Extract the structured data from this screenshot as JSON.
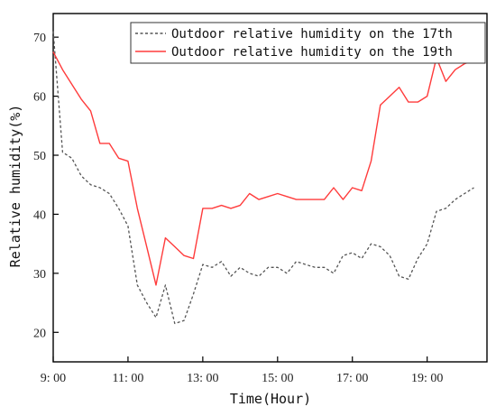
{
  "chart_data": {
    "type": "line",
    "xlabel": "Time(Hour)",
    "ylabel": "Relative humidity(%)",
    "xlim": [
      9.0,
      20.6
    ],
    "ylim": [
      15,
      74
    ],
    "x_ticks": [
      9,
      11,
      13,
      15,
      17,
      19
    ],
    "x_tick_labels": [
      "9: 00",
      "11: 00",
      "13: 00",
      "15: 00",
      "17: 00",
      "19: 00"
    ],
    "y_ticks": [
      20,
      30,
      40,
      50,
      60,
      70
    ],
    "y_tick_labels": [
      "20",
      "30",
      "40",
      "50",
      "60",
      "70"
    ],
    "grid": false,
    "legend_position": "top-right",
    "x": [
      9.0,
      9.25,
      9.5,
      9.75,
      10.0,
      10.25,
      10.5,
      10.75,
      11.0,
      11.25,
      11.5,
      11.75,
      12.0,
      12.25,
      12.5,
      12.75,
      13.0,
      13.25,
      13.5,
      13.75,
      14.0,
      14.25,
      14.5,
      14.75,
      15.0,
      15.25,
      15.5,
      15.75,
      16.0,
      16.25,
      16.5,
      16.75,
      17.0,
      17.25,
      17.5,
      17.75,
      18.0,
      18.25,
      18.5,
      18.75,
      19.0,
      19.25,
      19.5,
      19.75,
      20.0,
      20.25
    ],
    "series": [
      {
        "name": "Outdoor relative humidity on the 17th",
        "color": "#555555",
        "dash": true,
        "values": [
          71.0,
          50.5,
          49.5,
          46.5,
          45.0,
          44.5,
          43.5,
          41.0,
          38.0,
          28.0,
          25.0,
          22.5,
          28.0,
          21.5,
          22.0,
          26.5,
          31.5,
          31.0,
          32.0,
          29.5,
          31.0,
          30.0,
          29.5,
          31.0,
          31.0,
          30.0,
          32.0,
          31.5,
          31.0,
          31.0,
          30.0,
          33.0,
          33.5,
          32.5,
          35.0,
          34.5,
          33.0,
          29.5,
          29.0,
          32.5,
          35.0,
          40.5,
          41.0,
          42.5,
          43.5,
          44.5
        ]
      },
      {
        "name": "Outdoor relative humidity on the 19th",
        "color": "#ff3b3b",
        "dash": false,
        "values": [
          67.5,
          64.5,
          62.0,
          59.5,
          57.5,
          52.0,
          52.0,
          49.5,
          49.0,
          41.0,
          34.5,
          28.0,
          36.0,
          34.5,
          33.0,
          32.5,
          41.0,
          41.0,
          41.5,
          41.0,
          41.5,
          43.5,
          42.5,
          43.0,
          43.5,
          43.0,
          42.5,
          42.5,
          42.5,
          42.5,
          44.5,
          42.5,
          44.5,
          44.0,
          49.0,
          58.5,
          60.0,
          61.5,
          59.0,
          59.0,
          60.0,
          66.5,
          62.5,
          64.5,
          65.5,
          66.0
        ]
      }
    ]
  }
}
